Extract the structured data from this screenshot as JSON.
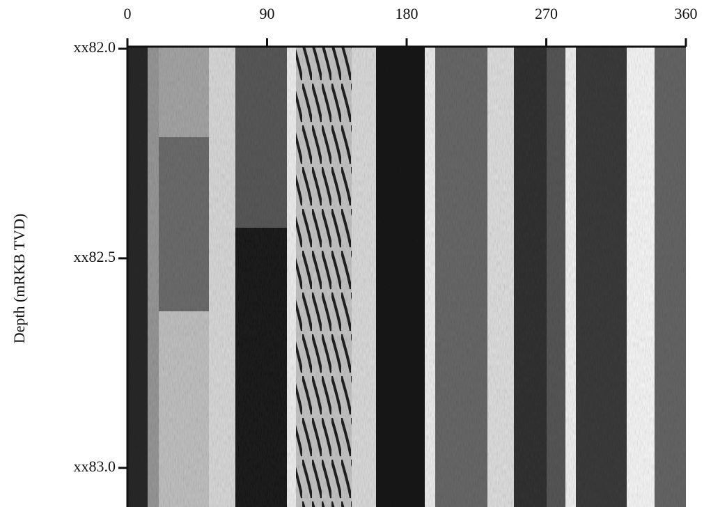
{
  "chart_data": {
    "type": "image",
    "y_label": "Depth (mRKB TVD)",
    "xlim": [
      0,
      360
    ],
    "xticks": [
      0,
      90,
      180,
      270,
      360
    ],
    "ylim": [
      82.0,
      83.09
    ],
    "yticks": [
      {
        "value": 82.0,
        "label": "xx82.0"
      },
      {
        "value": 82.5,
        "label": "xx82.5"
      },
      {
        "value": 83.0,
        "label": "xx83.0"
      }
    ]
  }
}
